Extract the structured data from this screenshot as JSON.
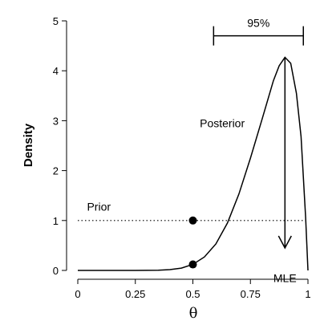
{
  "chart_data": {
    "type": "line",
    "xlabel": "θ",
    "ylabel": "Density",
    "xlim": [
      0,
      1
    ],
    "ylim": [
      0,
      5
    ],
    "x_ticks": [
      0,
      0.25,
      0.5,
      0.75,
      1
    ],
    "x_tick_labels": [
      "0",
      "0.25",
      "0.5",
      "0.75",
      "1"
    ],
    "y_ticks": [
      0,
      1,
      2,
      3,
      4,
      5
    ],
    "y_tick_labels": [
      "0",
      "1",
      "2",
      "3",
      "4",
      "5"
    ],
    "grid": false,
    "series": [
      {
        "name": "Posterior",
        "style": "solid",
        "x": [
          0,
          0.05,
          0.1,
          0.15,
          0.2,
          0.25,
          0.3,
          0.35,
          0.4,
          0.45,
          0.5,
          0.55,
          0.6,
          0.65,
          0.7,
          0.75,
          0.8,
          0.85,
          0.875,
          0.9,
          0.925,
          0.95,
          0.97,
          0.99,
          1
        ],
        "y": [
          0,
          0,
          0,
          0,
          0,
          0,
          0.001,
          0.005,
          0.016,
          0.047,
          0.12,
          0.27,
          0.53,
          0.95,
          1.53,
          2.25,
          3.02,
          3.8,
          4.1,
          4.27,
          4.15,
          3.55,
          2.68,
          1.06,
          0
        ]
      },
      {
        "name": "Prior",
        "style": "dotted",
        "x": [
          0,
          1
        ],
        "y": [
          1,
          1
        ]
      }
    ],
    "points": [
      {
        "x": 0.5,
        "y": 1
      },
      {
        "x": 0.5,
        "y": 0.12
      }
    ],
    "annotations": {
      "prior_label": "Prior",
      "posterior_label": "Posterior",
      "mle_label": "MLE",
      "mle_x": 0.9,
      "interval_label": "95%",
      "interval": [
        0.59,
        0.98
      ]
    }
  }
}
